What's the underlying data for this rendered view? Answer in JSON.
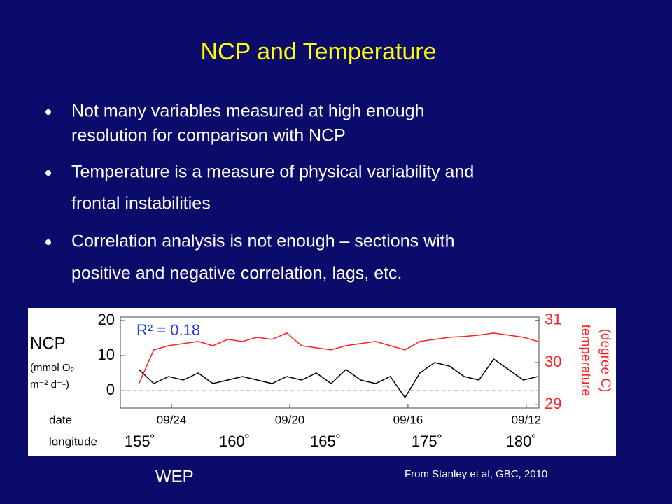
{
  "title": "NCP and Temperature",
  "bullets": [
    [
      "Not many variables measured at high enough",
      "resolution for comparison with NCP"
    ],
    [
      "Temperature is a measure of physical variability and",
      "frontal instabilities"
    ],
    [
      "Correlation analysis is not enough – sections with",
      "positive and negative correlation, lags, etc."
    ]
  ],
  "footer_left": "WEP",
  "footer_right": "From Stanley et al, GBC, 2010",
  "chart_data": {
    "type": "line",
    "annotation": "R² = 0.18",
    "y_label": [
      "NCP",
      "(mmol O₂",
      "m⁻² d⁻¹)"
    ],
    "y2_label": [
      "temperature",
      "(degree C)"
    ],
    "x_label": "date",
    "x2_label": "longitude",
    "x": [
      25.1,
      24.6,
      24.1,
      23.6,
      23.1,
      22.6,
      22.1,
      21.6,
      21.1,
      20.6,
      20.1,
      19.6,
      19.1,
      18.6,
      18.1,
      17.6,
      17.1,
      16.6,
      16.1,
      15.6,
      15.1,
      14.6,
      14.1,
      13.6,
      13.1,
      12.6,
      12.1,
      11.6
    ],
    "series": [
      {
        "name": "NCP",
        "color": "#000000",
        "values": [
          6,
          2,
          4,
          3,
          5,
          2,
          3,
          4,
          3,
          2,
          4,
          3,
          5,
          2,
          6,
          3,
          2,
          4,
          -2,
          5,
          8,
          7,
          4,
          3,
          9,
          6,
          3,
          4
        ]
      },
      {
        "name": "temperature",
        "color": "#ff2020",
        "axis": "y2",
        "values": [
          29.5,
          30.3,
          30.4,
          30.45,
          30.5,
          30.4,
          30.55,
          30.5,
          30.6,
          30.55,
          30.7,
          30.4,
          30.35,
          30.3,
          30.4,
          30.45,
          30.5,
          30.4,
          30.3,
          30.5,
          30.55,
          30.6,
          30.62,
          30.65,
          30.7,
          30.65,
          30.6,
          30.5
        ]
      }
    ],
    "xlim": [
      25.73,
      11.57
    ],
    "xticks": [
      {
        "value": 24,
        "label": "09/24"
      },
      {
        "value": 20,
        "label": "09/20"
      },
      {
        "value": 16,
        "label": "09/16"
      },
      {
        "value": 12,
        "label": "09/12"
      }
    ],
    "x2ticks": [
      {
        "value": 155,
        "label": "155˚",
        "x": 25.07
      },
      {
        "value": 160,
        "label": "160˚",
        "x": 21.87
      },
      {
        "value": 165,
        "label": "165˚",
        "x": 18.79
      },
      {
        "value": 175,
        "label": "175˚",
        "x": 15.36
      },
      {
        "value": 180,
        "label": "180˚",
        "x": 12.17
      }
    ],
    "ylim": [
      -5,
      21
    ],
    "yticks": [
      20,
      10,
      0
    ],
    "y2lim": [
      28.92,
      31.08
    ],
    "y2ticks": [
      31,
      30,
      29
    ],
    "y2_color": "#ff2020",
    "annotation_color": "#2040d0"
  }
}
